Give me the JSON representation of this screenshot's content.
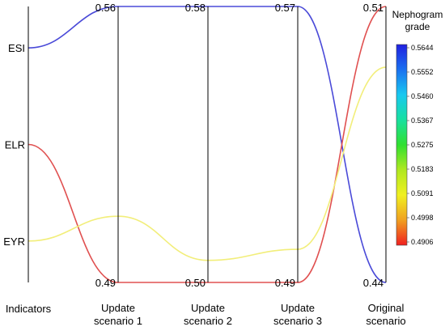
{
  "chart_data": {
    "type": "line",
    "axes": [
      {
        "label_lines": [
          "Indicators"
        ]
      },
      {
        "label_lines": [
          "Update",
          "scenario 1"
        ],
        "top": "0.56",
        "bottom": "0.49"
      },
      {
        "label_lines": [
          "Update",
          "scenario 2"
        ],
        "top": "0.58",
        "bottom": "0.50"
      },
      {
        "label_lines": [
          "Update",
          "scenario 3"
        ],
        "top": "0.57",
        "bottom": "0.49"
      },
      {
        "label_lines": [
          "Original",
          "scenario"
        ],
        "top": "0.51",
        "bottom": "0.44"
      }
    ],
    "indicators": [
      {
        "name": "ESI",
        "color": "#4a4ad8",
        "levels": [
          0.85,
          1.0,
          1.0,
          1.0,
          0.0
        ]
      },
      {
        "name": "ELR",
        "color": "#e05050",
        "levels": [
          0.5,
          0.0,
          0.0,
          0.0,
          1.0
        ]
      },
      {
        "name": "EYR",
        "color": "#f2ee7a",
        "levels": [
          0.15,
          0.24,
          0.08,
          0.12,
          0.78
        ]
      }
    ],
    "colorbar": {
      "title_lines": [
        "Nephogram",
        "grade"
      ],
      "ticks": [
        "0.5644",
        "0.5552",
        "0.5460",
        "0.5367",
        "0.5275",
        "0.5183",
        "0.5091",
        "0.4998",
        "0.4906"
      ],
      "colors": [
        "#2020e0",
        "#1a70f0",
        "#18c8f0",
        "#18e0a0",
        "#30e030",
        "#b0e820",
        "#f0f020",
        "#f0a020",
        "#f02020"
      ]
    }
  }
}
